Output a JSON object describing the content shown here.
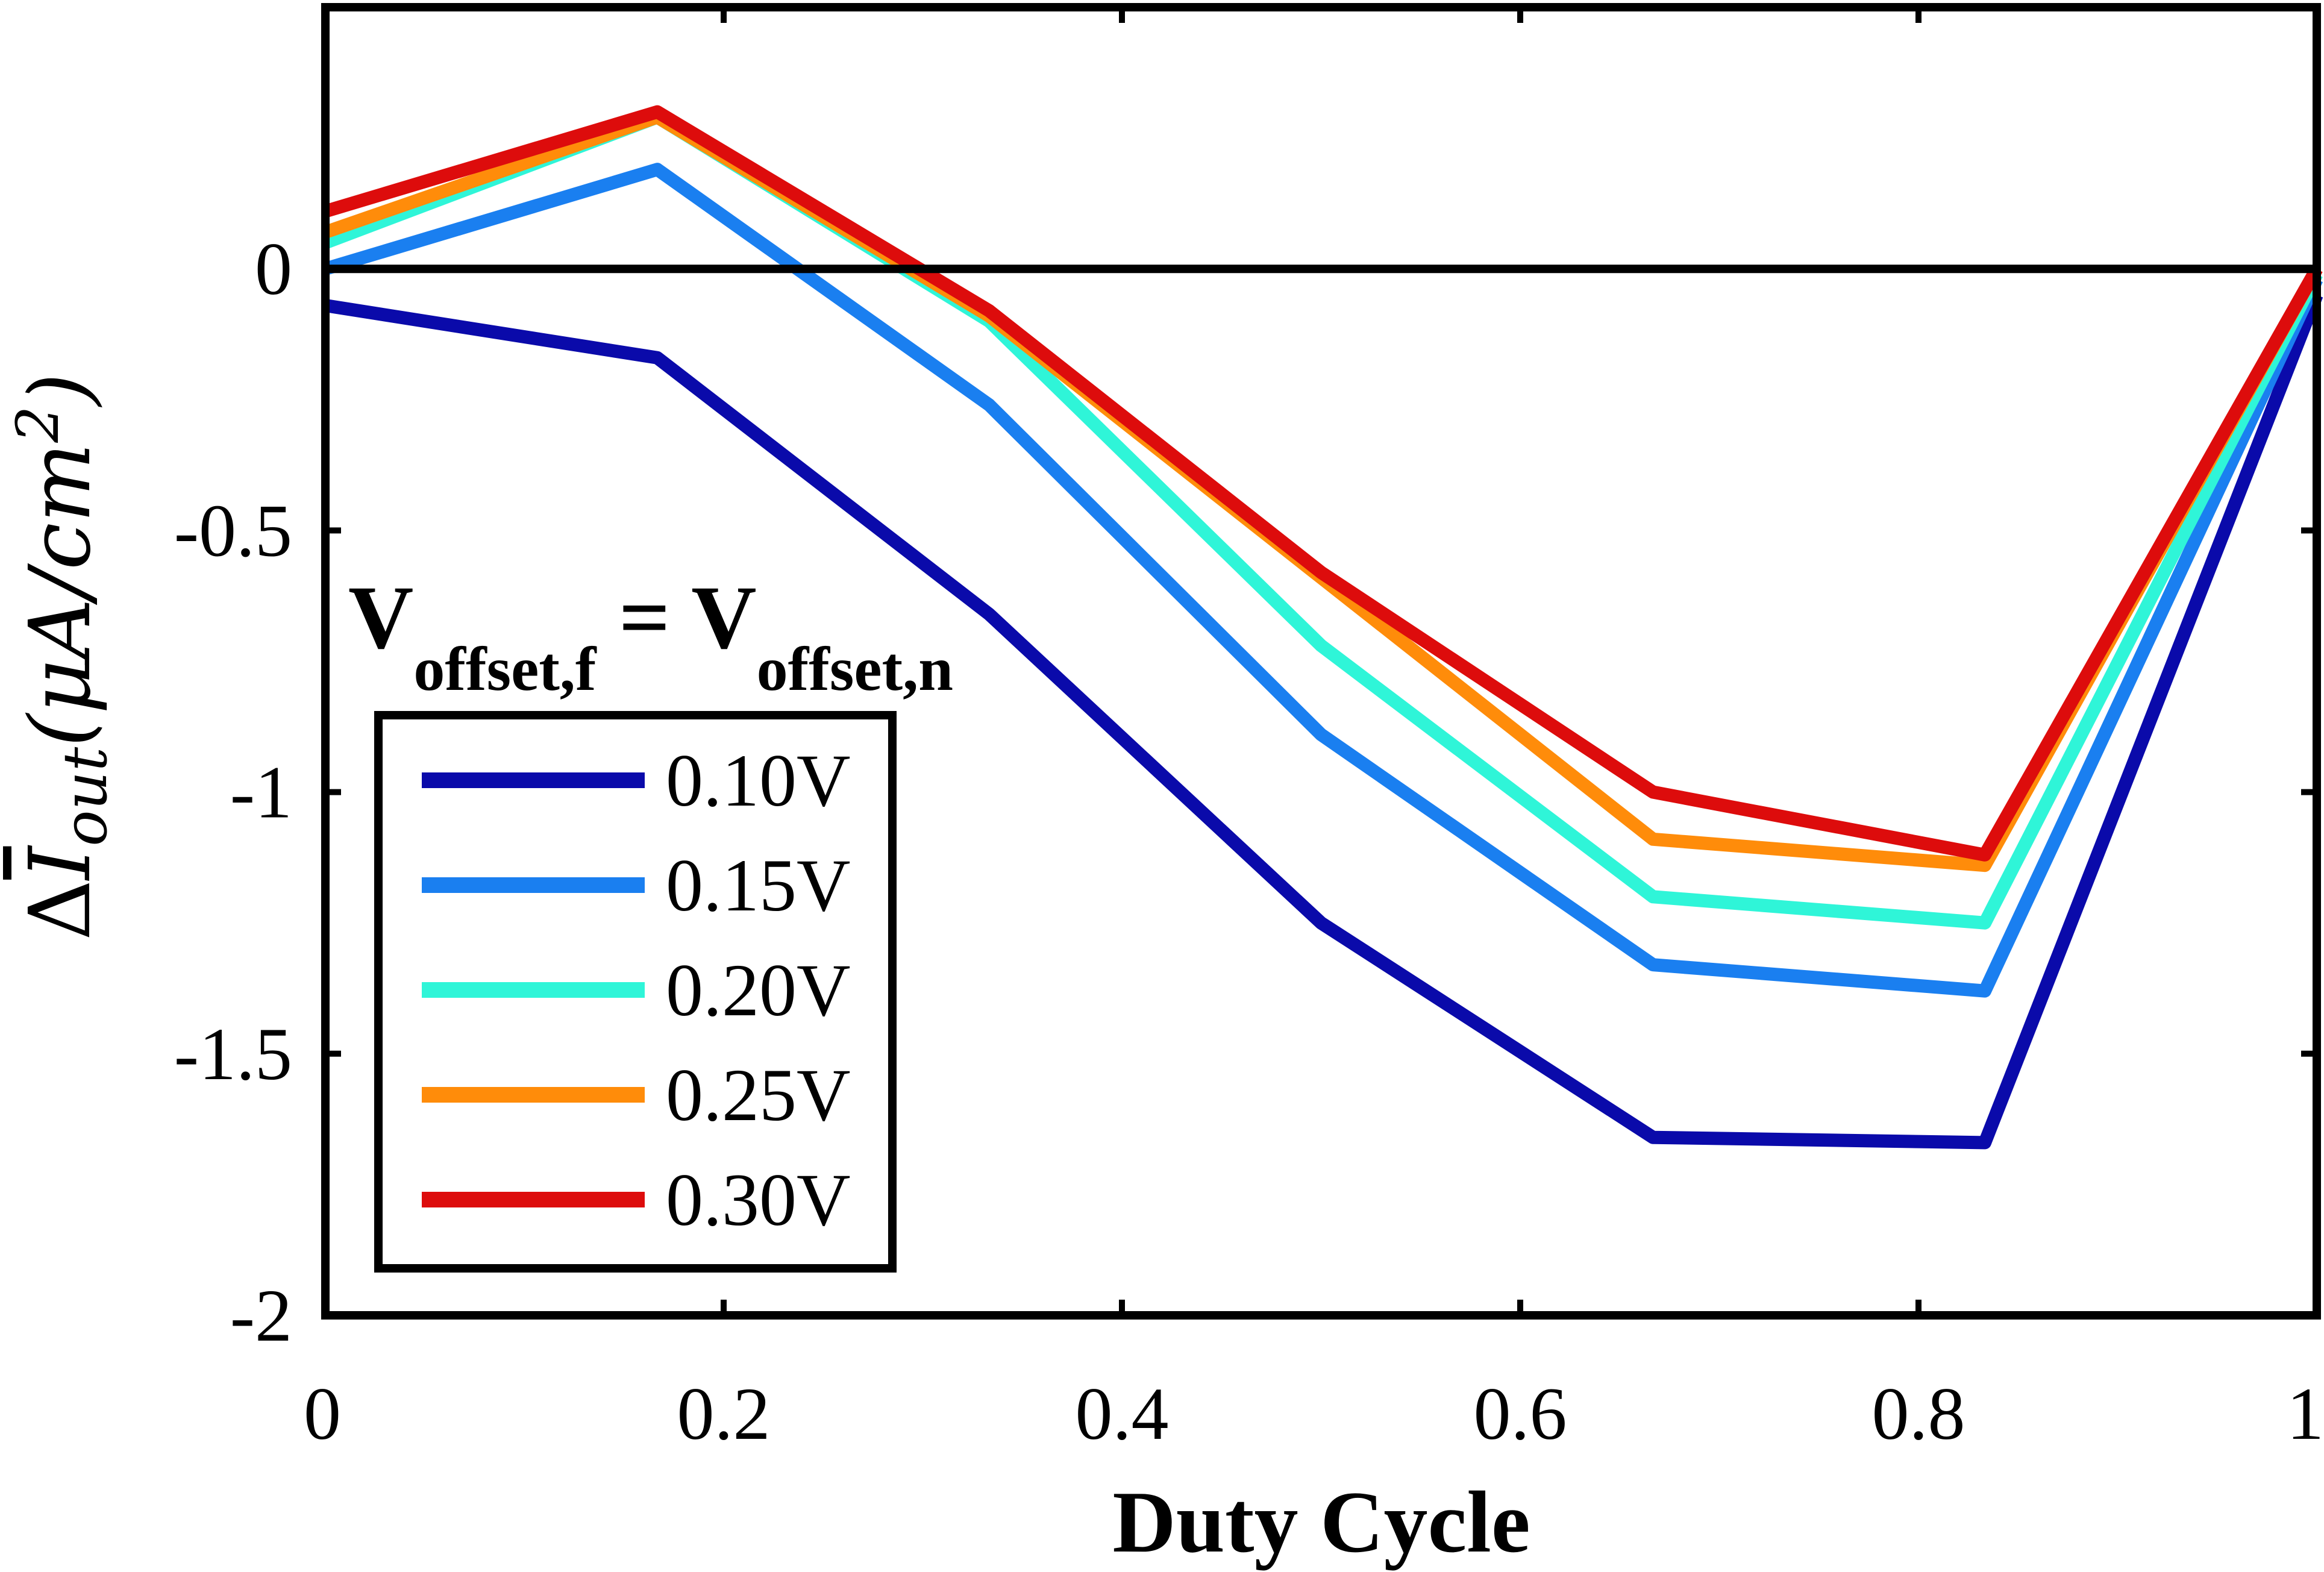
{
  "chart_data": {
    "type": "line",
    "title": "",
    "xlabel": "Duty Cycle",
    "ylabel_parts": {
      "delta": "Δ",
      "symbol": "I",
      "subscript": "out",
      "unit": "(μA/cm",
      "unit_exp": "2",
      "unit_close": ")"
    },
    "xlim": [
      0,
      1
    ],
    "ylim": [
      -2,
      0.5
    ],
    "xticks": [
      0,
      0.2,
      0.4,
      0.6,
      0.8,
      1
    ],
    "xtick_labels": [
      "0",
      "0.2",
      "0.4",
      "0.6",
      "0.8",
      "1"
    ],
    "yticks": [
      -2,
      -1.5,
      -1,
      -0.5,
      0
    ],
    "ytick_labels": [
      "-2",
      "-1.5",
      "-1",
      "-0.5",
      "0"
    ],
    "reference_line_y": 0,
    "grid": false,
    "legend": {
      "placement": "lower-left",
      "title_parts": {
        "lhs": "V",
        "lhs_sub": "offset,f",
        "eq": " = ",
        "rhs": "V",
        "rhs_sub": "offset,n"
      }
    },
    "x": [
      0,
      0.1667,
      0.3333,
      0.5,
      0.6667,
      0.8333,
      1
    ],
    "series": [
      {
        "name": "0.10V",
        "color": "#0a0aaa",
        "values": [
          -0.07,
          -0.17,
          -0.66,
          -1.25,
          -1.66,
          -1.67,
          -0.05
        ]
      },
      {
        "name": "0.15V",
        "color": "#1a7ff0",
        "values": [
          0.0,
          0.19,
          -0.26,
          -0.89,
          -1.33,
          -1.38,
          -0.02
        ]
      },
      {
        "name": "0.20V",
        "color": "#2ff5d8",
        "values": [
          0.05,
          0.29,
          -0.1,
          -0.72,
          -1.2,
          -1.25,
          -0.01
        ]
      },
      {
        "name": "0.25V",
        "color": "#ff8c0a",
        "values": [
          0.07,
          0.29,
          -0.09,
          -0.59,
          -1.09,
          -1.14,
          0.0
        ]
      },
      {
        "name": "0.30V",
        "color": "#dd0c0c",
        "values": [
          0.11,
          0.3,
          -0.08,
          -0.58,
          -1.0,
          -1.12,
          0.0
        ]
      }
    ]
  }
}
